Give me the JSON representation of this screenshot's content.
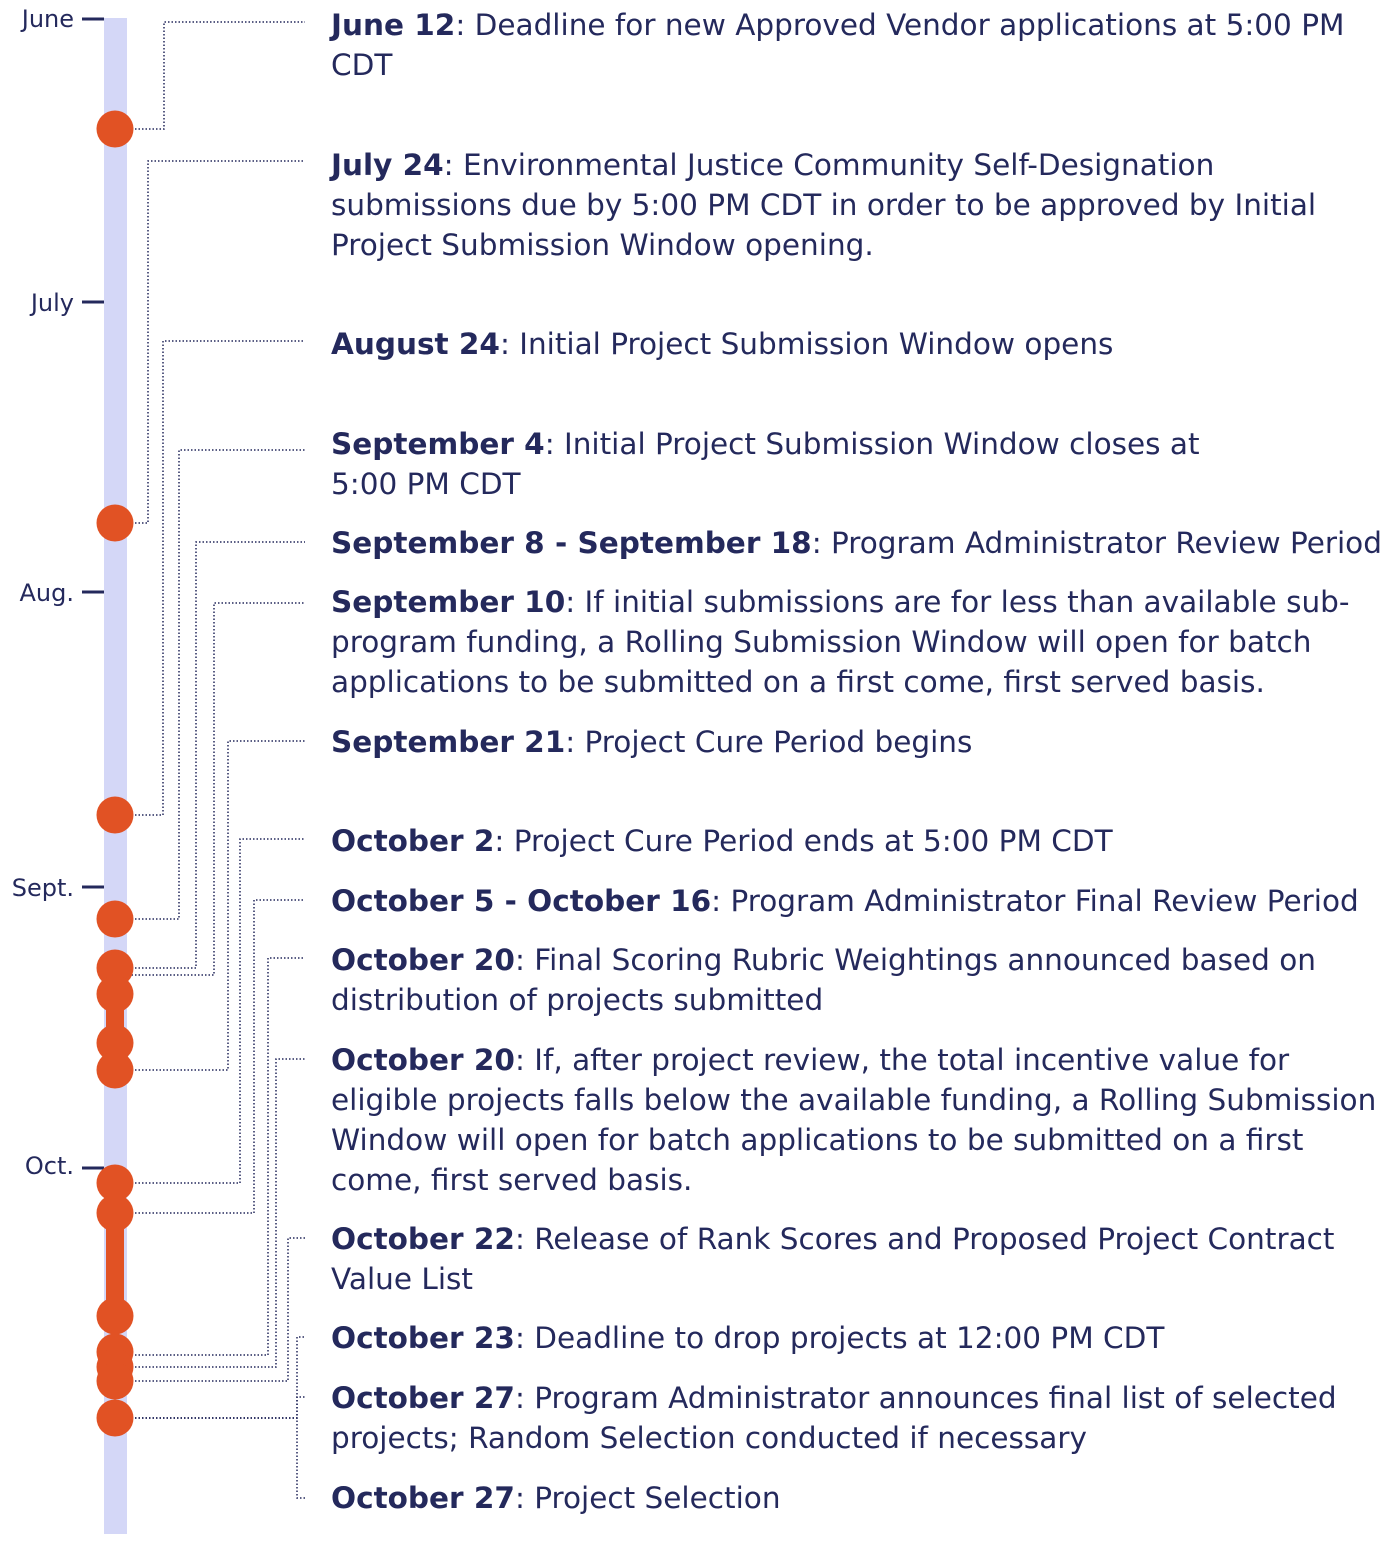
{
  "colors": {
    "track": "#d4d7f7",
    "marker": "#e15224",
    "text": "#24295c",
    "connector": "#24295c"
  },
  "months": [
    {
      "label": "June"
    },
    {
      "label": "July"
    },
    {
      "label": "Aug."
    },
    {
      "label": "Sept."
    },
    {
      "label": "Oct."
    }
  ],
  "events": [
    {
      "date": "June 12",
      "text": ": Deadline for new Approved Vendor applications at 5:00 PM CDT"
    },
    {
      "date": "July 24",
      "text": ": Environmental Justice Community Self-Designation submissions due by 5:00 PM CDT in order to be approved by Initial Project Submission Window opening."
    },
    {
      "date": "August 24",
      "text": ": Initial Project Submission Window opens"
    },
    {
      "date": "September 4",
      "text": ": Initial Project Submission Window closes at 5:00 PM CDT"
    },
    {
      "date": "September 8 - September 18",
      "text": ": Program Administrator Review Period"
    },
    {
      "date": "September 10",
      "text": ": If initial submissions are for less than available sub-program funding, a Rolling Submission Window will open for batch applications to be submitted on a first come, first served basis."
    },
    {
      "date": "September 21",
      "text": ": Project Cure Period begins"
    },
    {
      "date": "October 2",
      "text": ": Project Cure Period ends at 5:00 PM CDT"
    },
    {
      "date": "October 5 - October 16",
      "text": ": Program Administrator Final Review Period"
    },
    {
      "date": "October 20",
      "text": ": Final Scoring Rubric Weightings announced based on distribution of projects submitted"
    },
    {
      "date": "October 20",
      "text": ": If, after project review, the total incentive value for eligible projects falls below the available funding, a Rolling Submission Window will open for batch applications to be submitted on a first come, first served basis."
    },
    {
      "date": "October 22",
      "text": ": Release of Rank Scores and Proposed Project Contract Value List"
    },
    {
      "date": "October 23",
      "text": ": Deadline to drop projects at 12:00 PM CDT"
    },
    {
      "date": "October 27",
      "text": ": Program Administrator announces final list of selected projects; Random Selection conducted if necessary"
    },
    {
      "date": "October 27",
      "text": ": Project Selection"
    }
  ]
}
